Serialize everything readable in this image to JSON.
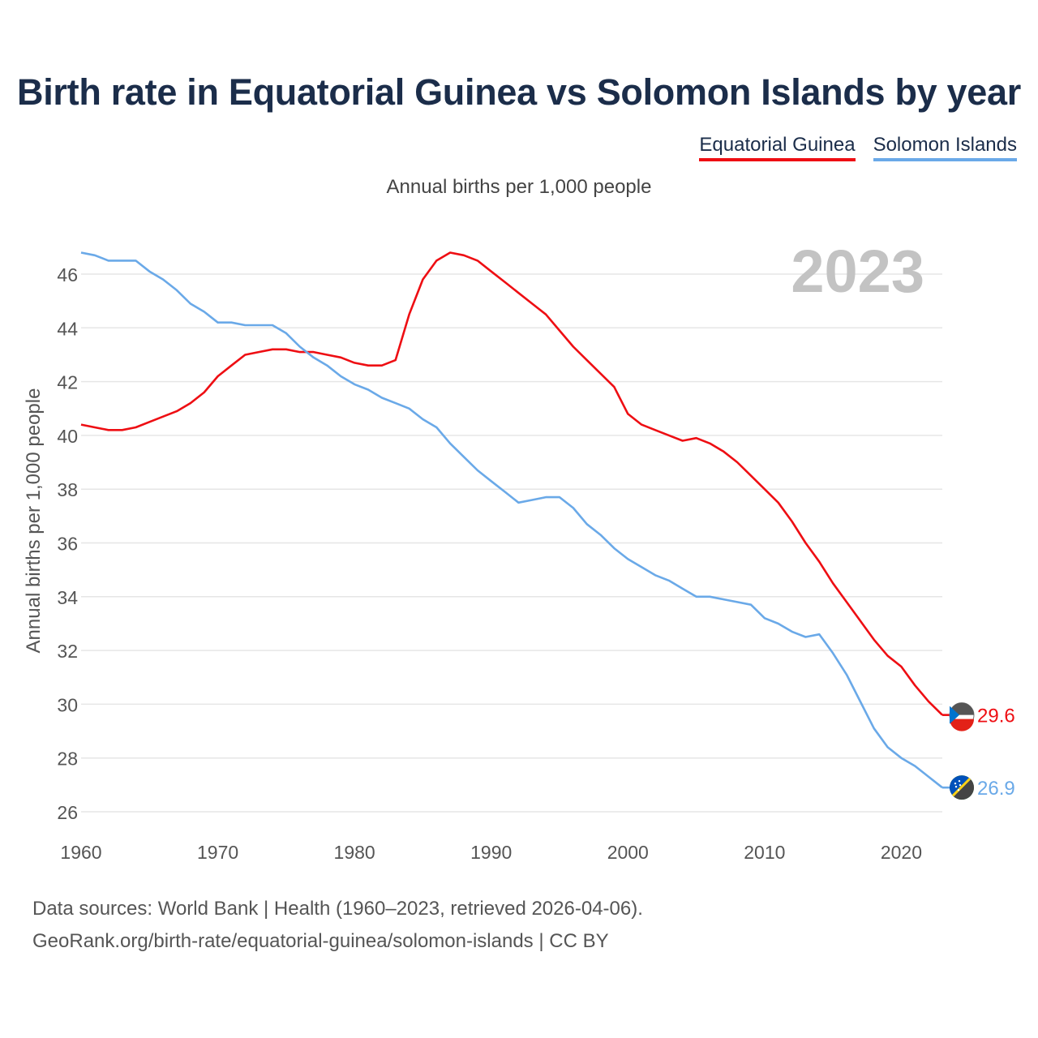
{
  "header": {
    "title": "Birth rate in Equatorial Guinea vs Solomon Islands by year",
    "subtitle": "Annual births per 1,000 people"
  },
  "legend": {
    "items": [
      {
        "label": "Equatorial Guinea",
        "color": "#ee0e13"
      },
      {
        "label": "Solomon Islands",
        "color": "#6aa9e8"
      }
    ]
  },
  "footer": {
    "source_line1": "Data sources: World Bank | Health (1960–2023, retrieved 2026-04-06).",
    "source_line2": "GeoRank.org/birth-rate/equatorial-guinea/solomon-islands | CC BY"
  },
  "chart_data": {
    "type": "line",
    "title": "Birth rate in Equatorial Guinea vs Solomon Islands by year",
    "subtitle": "Annual births per 1,000 people",
    "xlabel": "",
    "ylabel": "Annual births per 1,000 people",
    "year_label": "2023",
    "xlim": [
      1960,
      2023
    ],
    "ylim": [
      25.5,
      47.5
    ],
    "x_ticks": [
      1960,
      1970,
      1980,
      1990,
      2000,
      2010,
      2020
    ],
    "y_ticks": [
      26,
      28,
      30,
      32,
      34,
      36,
      38,
      40,
      42,
      44,
      46
    ],
    "grid": true,
    "x": [
      1960,
      1961,
      1962,
      1963,
      1964,
      1965,
      1966,
      1967,
      1968,
      1969,
      1970,
      1971,
      1972,
      1973,
      1974,
      1975,
      1976,
      1977,
      1978,
      1979,
      1980,
      1981,
      1982,
      1983,
      1984,
      1985,
      1986,
      1987,
      1988,
      1989,
      1990,
      1991,
      1992,
      1993,
      1994,
      1995,
      1996,
      1997,
      1998,
      1999,
      2000,
      2001,
      2002,
      2003,
      2004,
      2005,
      2006,
      2007,
      2008,
      2009,
      2010,
      2011,
      2012,
      2013,
      2014,
      2015,
      2016,
      2017,
      2018,
      2019,
      2020,
      2021,
      2022,
      2023
    ],
    "series": [
      {
        "name": "Equatorial Guinea",
        "color": "#ee0e13",
        "end_label": "29.6",
        "values": [
          40.4,
          40.3,
          40.2,
          40.2,
          40.3,
          40.5,
          40.7,
          40.9,
          41.2,
          41.6,
          42.2,
          42.6,
          43.0,
          43.1,
          43.2,
          43.2,
          43.1,
          43.1,
          43.0,
          42.9,
          42.7,
          42.6,
          42.6,
          42.8,
          44.5,
          45.8,
          46.5,
          46.8,
          46.7,
          46.5,
          46.1,
          45.7,
          45.3,
          44.9,
          44.5,
          43.9,
          43.3,
          42.8,
          42.3,
          41.8,
          40.8,
          40.4,
          40.2,
          40.0,
          39.8,
          39.9,
          39.7,
          39.4,
          39.0,
          38.5,
          38.0,
          37.5,
          36.8,
          36.0,
          35.3,
          34.5,
          33.8,
          33.1,
          32.4,
          31.8,
          31.4,
          30.7,
          30.1,
          29.6
        ]
      },
      {
        "name": "Solomon Islands",
        "color": "#6aa9e8",
        "end_label": "26.9",
        "values": [
          46.8,
          46.7,
          46.5,
          46.5,
          46.5,
          46.1,
          45.8,
          45.4,
          44.9,
          44.6,
          44.2,
          44.2,
          44.1,
          44.1,
          44.1,
          43.8,
          43.3,
          42.9,
          42.6,
          42.2,
          41.9,
          41.7,
          41.4,
          41.2,
          41.0,
          40.6,
          40.3,
          39.7,
          39.2,
          38.7,
          38.3,
          37.9,
          37.5,
          37.6,
          37.7,
          37.7,
          37.3,
          36.7,
          36.3,
          35.8,
          35.4,
          35.1,
          34.8,
          34.6,
          34.3,
          34.0,
          34.0,
          33.9,
          33.8,
          33.7,
          33.2,
          33.0,
          32.7,
          32.5,
          32.6,
          31.9,
          31.1,
          30.1,
          29.1,
          28.4,
          28.0,
          27.7,
          27.3,
          26.9
        ]
      }
    ]
  }
}
